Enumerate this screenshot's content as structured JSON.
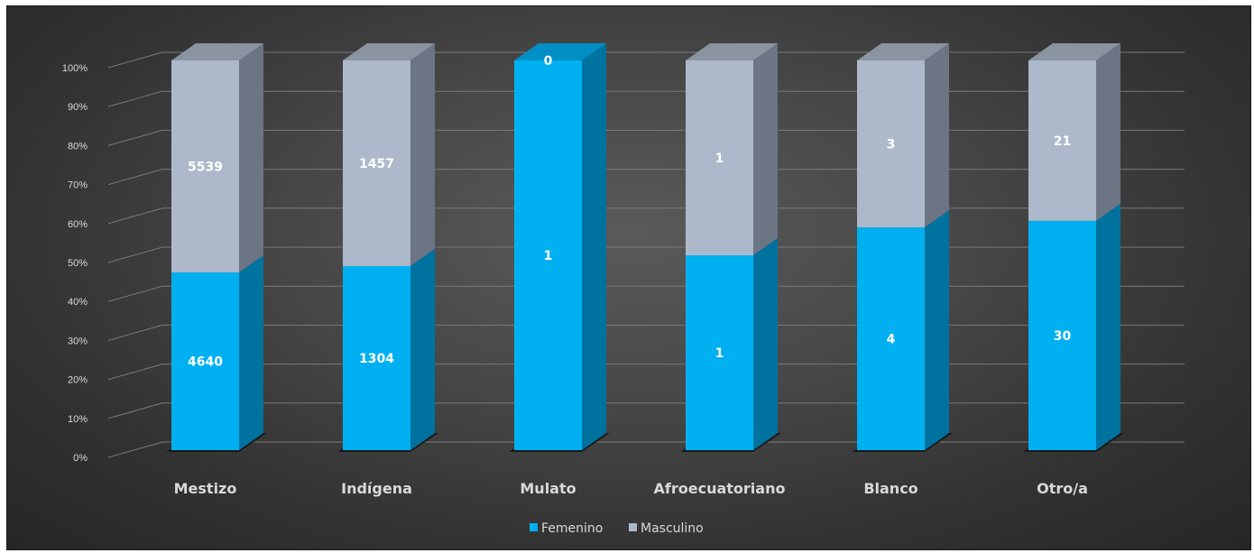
{
  "chart_data": {
    "type": "bar",
    "stacked": "percent",
    "three_d": true,
    "categories": [
      "Mestizo",
      "Indígena",
      "Mulato",
      "Afroecuatoriano",
      "Blanco",
      "Otro/a"
    ],
    "series": [
      {
        "name": "Femenino",
        "color": "#00b0f0",
        "side_color": "#0072a0",
        "values": [
          4640,
          1304,
          1,
          1,
          4,
          30
        ]
      },
      {
        "name": "Masculino",
        "color": "#adb9ca",
        "side_color": "#6b7583",
        "values": [
          5539,
          1457,
          0,
          1,
          3,
          21
        ]
      }
    ],
    "y_ticks": [
      "0%",
      "10%",
      "20%",
      "30%",
      "40%",
      "50%",
      "60%",
      "70%",
      "80%",
      "90%",
      "100%"
    ],
    "ylim": [
      0,
      100
    ],
    "grid": true,
    "legend_position": "bottom"
  }
}
